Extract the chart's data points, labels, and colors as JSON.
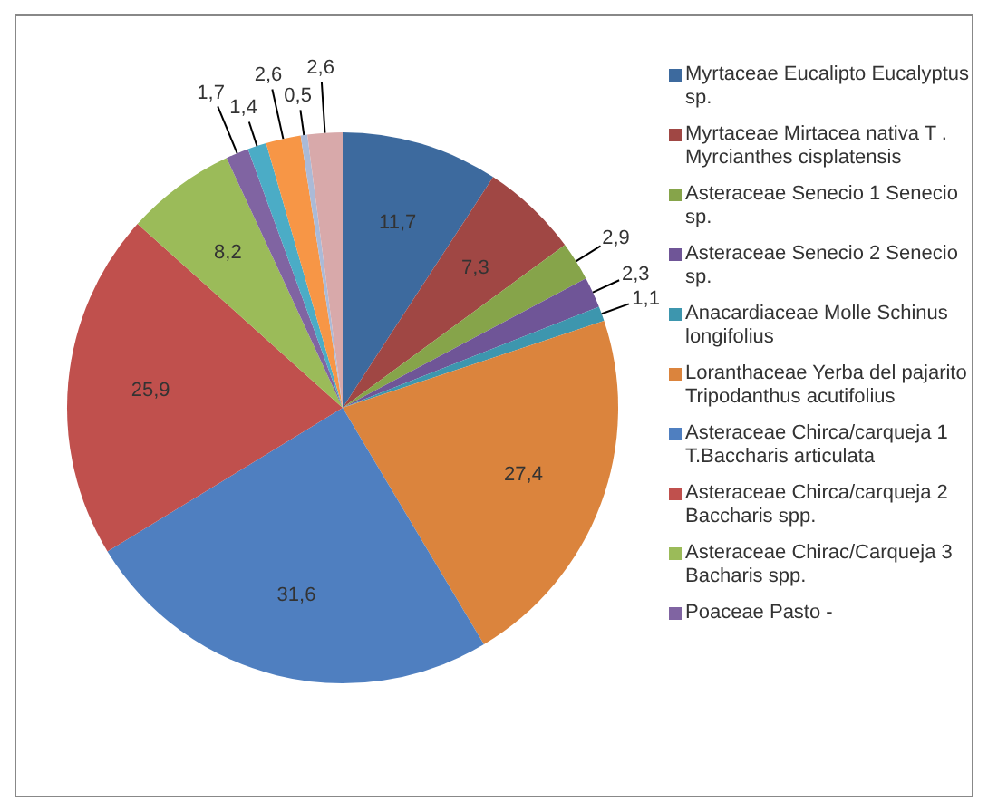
{
  "chart_data": {
    "type": "pie",
    "categories": [
      "Myrtaceae Eucalipto  Eucalyptus sp.",
      "Myrtaceae Mirtacea nativa T . Myrcianthes cisplatensis",
      "Asteraceae Senecio 1 Senecio sp.",
      "Asteraceae Senecio 2 Senecio sp.",
      "Anacardiaceae Molle  Schinus longifolius",
      "Loranthaceae Yerba del pajarito Tripodanthus acutifolius",
      "Asteraceae Chirca/carqueja 1 T.Baccharis articulata",
      "Asteraceae Chirca/carqueja 2 Baccharis spp.",
      "Asteraceae Chirac/Carqueja 3 Bacharis spp.",
      "Poaceae Pasto -",
      null,
      null,
      null,
      null
    ],
    "values": [
      11.7,
      7.3,
      2.9,
      2.3,
      1.1,
      27.4,
      31.6,
      25.9,
      8.2,
      1.7,
      1.4,
      2.6,
      0.5,
      2.6
    ],
    "value_labels": [
      "11,7",
      "7,3",
      "2,9",
      "2,3",
      "1,1",
      "27,4",
      "31,6",
      "25,9",
      "8,2",
      "1,7",
      "1,4",
      "2,6",
      "0,5",
      "2,6"
    ],
    "colors": [
      "#3d6a9e",
      "#a04744",
      "#86a44a",
      "#6f5597",
      "#3d96ae",
      "#db843d",
      "#4f7fc0",
      "#c0504d",
      "#9bbb59",
      "#8064a2",
      "#4bacc6",
      "#f79646",
      "#aabad7",
      "#d8a9aa"
    ],
    "legend": "right"
  }
}
